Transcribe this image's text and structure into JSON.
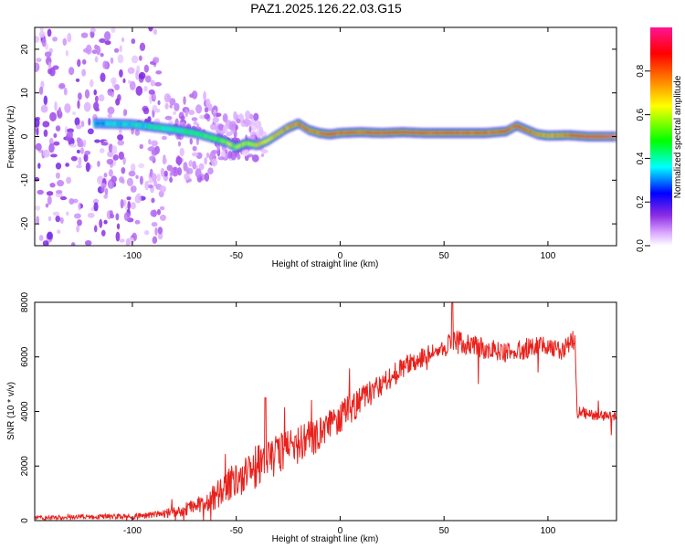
{
  "title": "PAZ1.2025.126.22.03.G15",
  "chart_data": [
    {
      "type": "heatmap",
      "xlabel": "Height of straight line (km)",
      "ylabel": "Frequency (Hz)",
      "xlim": [
        -147,
        133
      ],
      "ylim": [
        -25,
        25
      ],
      "xticks": [
        -100,
        -50,
        0,
        50,
        100
      ],
      "yticks": [
        -20,
        -10,
        0,
        10,
        20
      ],
      "colorbar": {
        "label": "Normalized spectral amplitude",
        "range": [
          0,
          1
        ],
        "ticks": [
          0.0,
          0.2,
          0.4,
          0.6,
          0.8
        ],
        "colormap": [
          "#ffffff",
          "#d9a6ff",
          "#8a2be2",
          "#0000ff",
          "#00ffff",
          "#00ff00",
          "#ffff00",
          "#ff7f00",
          "#ff0000",
          "#ff1493"
        ]
      },
      "ridge_frequency": {
        "x": [
          -115,
          -100,
          -90,
          -80,
          -70,
          -60,
          -55,
          -50,
          -45,
          -40,
          -35,
          -30,
          -25,
          -20,
          -15,
          -10,
          -5,
          0,
          10,
          20,
          30,
          40,
          50,
          60,
          70,
          80,
          85,
          90,
          95,
          100,
          110,
          120,
          133
        ],
        "y": [
          3,
          2.8,
          2.2,
          1.6,
          0.8,
          -0.5,
          -1.2,
          -2.5,
          -1.5,
          -2,
          -1,
          0.5,
          2,
          3,
          1.5,
          0.8,
          0.5,
          0.8,
          1,
          0.8,
          1,
          0.8,
          0.8,
          0.8,
          0.8,
          1.2,
          2.5,
          1.5,
          0.5,
          0.2,
          0.3,
          0,
          0
        ]
      },
      "ridge_amplitude": [
        0.3,
        0.35,
        0.4,
        0.4,
        0.45,
        0.5,
        0.6,
        0.55,
        0.6,
        0.65,
        0.7,
        0.75,
        0.75,
        0.8,
        0.8,
        0.8,
        0.85,
        0.85,
        0.85,
        0.85,
        0.85,
        0.85,
        0.85,
        0.85,
        0.85,
        0.85,
        0.85,
        0.8,
        0.8,
        0.75,
        0.8,
        0.9,
        0.95
      ]
    },
    {
      "type": "line",
      "xlabel": "Height of straight line (km)",
      "ylabel": "SNR (10 * v/v)",
      "xlim": [
        -147,
        133
      ],
      "ylim": [
        0,
        8000
      ],
      "xticks": [
        -100,
        -50,
        0,
        50,
        100
      ],
      "yticks": [
        0,
        2000,
        4000,
        6000,
        8000
      ],
      "color": "#e8211c",
      "envelope": {
        "x": [
          -147,
          -120,
          -100,
          -90,
          -80,
          -70,
          -60,
          -50,
          -40,
          -30,
          -20,
          -10,
          0,
          10,
          20,
          30,
          40,
          50,
          55,
          60,
          70,
          80,
          90,
          100,
          105,
          110,
          113,
          114,
          120,
          125,
          133
        ],
        "mean": [
          100,
          150,
          150,
          200,
          300,
          500,
          900,
          1500,
          2000,
          2400,
          2800,
          3200,
          3800,
          4400,
          5000,
          5600,
          6000,
          6300,
          6600,
          6500,
          6300,
          6200,
          6300,
          6400,
          6200,
          6500,
          6700,
          4000,
          3900,
          3800,
          3800
        ],
        "spread": [
          80,
          100,
          100,
          120,
          200,
          300,
          500,
          700,
          800,
          800,
          700,
          700,
          600,
          500,
          450,
          400,
          350,
          350,
          500,
          400,
          400,
          400,
          400,
          400,
          400,
          400,
          400,
          250,
          200,
          200,
          200
        ]
      }
    }
  ]
}
